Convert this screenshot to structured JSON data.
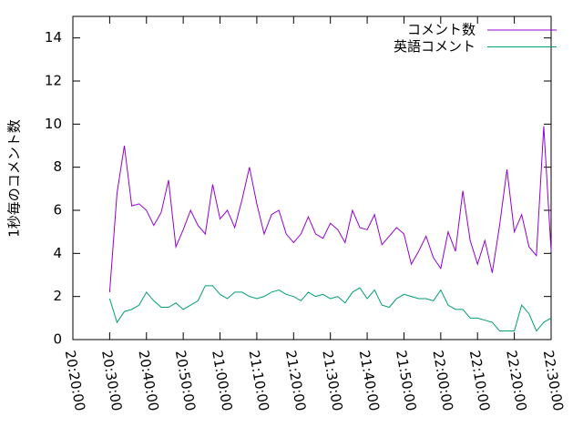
{
  "chart_data": {
    "type": "line",
    "y_label": "1秒毎のコメント数",
    "x": [
      "20:30:00",
      "20:32:00",
      "20:34:00",
      "20:36:00",
      "20:38:00",
      "20:40:00",
      "20:42:00",
      "20:44:00",
      "20:46:00",
      "20:48:00",
      "20:50:00",
      "20:52:00",
      "20:54:00",
      "20:56:00",
      "20:58:00",
      "21:00:00",
      "21:02:00",
      "21:04:00",
      "21:06:00",
      "21:08:00",
      "21:10:00",
      "21:12:00",
      "21:14:00",
      "21:16:00",
      "21:18:00",
      "21:20:00",
      "21:22:00",
      "21:24:00",
      "21:26:00",
      "21:28:00",
      "21:30:00",
      "21:32:00",
      "21:34:00",
      "21:36:00",
      "21:38:00",
      "21:40:00",
      "21:42:00",
      "21:44:00",
      "21:46:00",
      "21:48:00",
      "21:50:00",
      "21:52:00",
      "21:54:00",
      "21:56:00",
      "21:58:00",
      "22:00:00",
      "22:02:00",
      "22:04:00",
      "22:06:00",
      "22:08:00",
      "22:10:00",
      "22:12:00",
      "22:14:00",
      "22:16:00",
      "22:18:00",
      "22:20:00",
      "22:22:00",
      "22:24:00",
      "22:26:00",
      "22:28:00",
      "22:30:00"
    ],
    "series": [
      {
        "name": "コメント数",
        "color": "#9400d3",
        "values": [
          2.2,
          6.8,
          9.0,
          6.2,
          6.3,
          6.0,
          5.3,
          5.9,
          7.4,
          4.3,
          5.1,
          6.0,
          5.3,
          4.9,
          7.2,
          5.6,
          6.0,
          5.2,
          6.5,
          8.0,
          6.3,
          4.9,
          5.8,
          6.0,
          4.9,
          4.5,
          4.9,
          5.7,
          4.9,
          4.7,
          5.4,
          5.1,
          4.5,
          6.0,
          5.2,
          5.1,
          5.8,
          4.4,
          4.8,
          5.2,
          4.9,
          3.5,
          4.1,
          4.8,
          3.8,
          3.3,
          5.0,
          4.1,
          6.9,
          4.6,
          3.5,
          4.6,
          3.1,
          5.3,
          7.9,
          5.0,
          5.8,
          4.3,
          3.9,
          9.9,
          4.1
        ]
      },
      {
        "name": "英語コメント",
        "color": "#009e73",
        "values": [
          1.9,
          0.8,
          1.3,
          1.4,
          1.6,
          2.2,
          1.8,
          1.5,
          1.5,
          1.7,
          1.4,
          1.6,
          1.8,
          2.5,
          2.5,
          2.1,
          1.9,
          2.2,
          2.2,
          2.0,
          1.9,
          2.0,
          2.2,
          2.3,
          2.1,
          2.0,
          1.8,
          2.2,
          2.0,
          2.1,
          1.9,
          2.0,
          1.7,
          2.2,
          2.4,
          1.9,
          2.3,
          1.6,
          1.5,
          1.9,
          2.1,
          2.0,
          1.9,
          1.9,
          1.8,
          2.3,
          1.6,
          1.4,
          1.4,
          1.0,
          1.0,
          0.9,
          0.8,
          0.4,
          0.4,
          0.4,
          1.6,
          1.2,
          0.4,
          0.8,
          1.0
        ]
      }
    ],
    "xlim": [
      "20:20:00",
      "22:30:00"
    ],
    "xticks": [
      "20:20:00",
      "20:30:00",
      "20:40:00",
      "20:50:00",
      "21:00:00",
      "21:10:00",
      "21:20:00",
      "21:30:00",
      "21:40:00",
      "21:50:00",
      "22:00:00",
      "22:10:00",
      "22:20:00",
      "22:30:00"
    ],
    "ylim": [
      0,
      15
    ],
    "yticks": [
      0,
      2,
      4,
      6,
      8,
      10,
      12,
      14
    ],
    "legend": "top-right"
  }
}
